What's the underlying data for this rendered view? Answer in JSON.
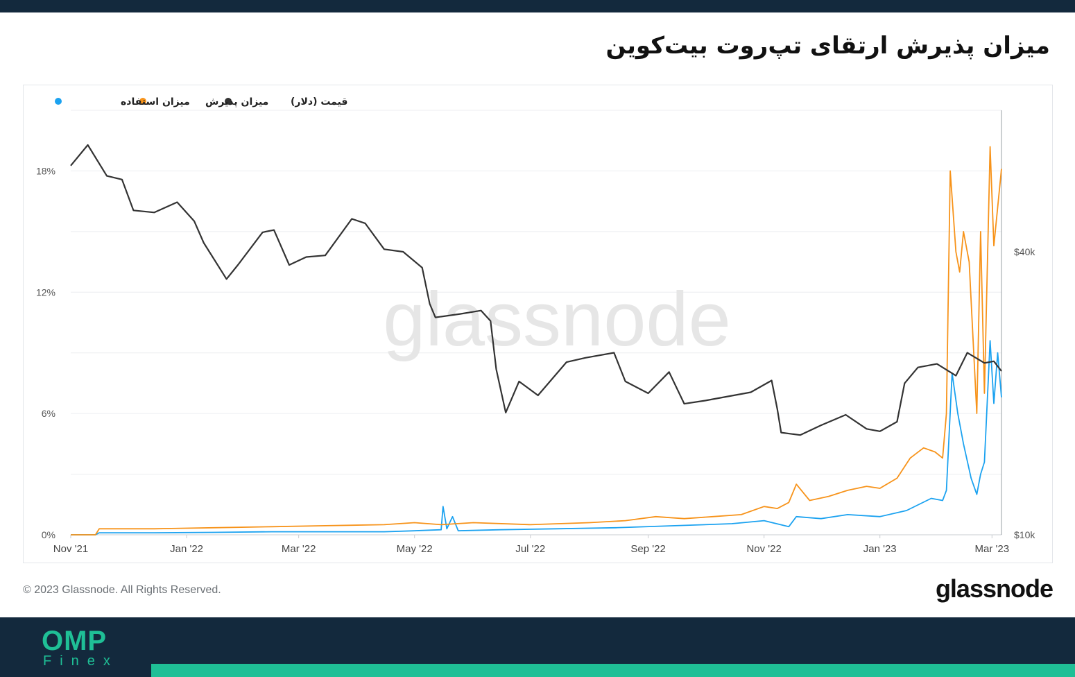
{
  "header": {
    "title": "میزان پذیرش ارتقای تپ‌روت بیت‌کوین"
  },
  "chart_data": {
    "type": "line",
    "title": "میزان پذیرش ارتقای تپ‌روت بیت‌کوین",
    "watermark": "glassnode",
    "legend": [
      {
        "label": "قیمت (دلار)",
        "color": "#333333"
      },
      {
        "label": "میزان پذیرش",
        "color": "#f7931a"
      },
      {
        "label": "میزان استفاده",
        "color": "#1ba2f0"
      }
    ],
    "legend_position": "top-left",
    "grid": true,
    "x_ticks": [
      "Nov '21",
      "Jan '22",
      "Mar '22",
      "May '22",
      "Jul '22",
      "Sep '22",
      "Nov '22",
      "Jan '23",
      "Mar '23"
    ],
    "y_left_ticks": [
      "0%",
      "6%",
      "12%",
      "18%"
    ],
    "y_left_range": [
      0,
      21
    ],
    "y_right_ticks": [
      "$10k",
      "$40k"
    ],
    "y_right_scale": "log",
    "y_right_range": [
      10000,
      80000
    ],
    "x_range": [
      "2021-11-01",
      "2023-03-06"
    ],
    "series": [
      {
        "name": "قیمت (دلار)",
        "axis": "right",
        "color": "#333333",
        "points": [
          [
            "2021-11-01",
            61000
          ],
          [
            "2021-11-10",
            67500
          ],
          [
            "2021-11-20",
            58000
          ],
          [
            "2021-11-28",
            57000
          ],
          [
            "2021-12-04",
            49000
          ],
          [
            "2021-12-15",
            48500
          ],
          [
            "2021-12-27",
            51000
          ],
          [
            "2022-01-05",
            46500
          ],
          [
            "2022-01-10",
            41800
          ],
          [
            "2022-01-22",
            35000
          ],
          [
            "2022-01-28",
            37500
          ],
          [
            "2022-02-10",
            44000
          ],
          [
            "2022-02-16",
            44500
          ],
          [
            "2022-02-24",
            37500
          ],
          [
            "2022-03-05",
            39000
          ],
          [
            "2022-03-15",
            39300
          ],
          [
            "2022-03-29",
            47000
          ],
          [
            "2022-04-05",
            46000
          ],
          [
            "2022-04-15",
            40500
          ],
          [
            "2022-04-25",
            40000
          ],
          [
            "2022-05-05",
            37000
          ],
          [
            "2022-05-09",
            31000
          ],
          [
            "2022-05-12",
            29000
          ],
          [
            "2022-05-25",
            29500
          ],
          [
            "2022-06-05",
            30000
          ],
          [
            "2022-06-10",
            28500
          ],
          [
            "2022-06-13",
            22500
          ],
          [
            "2022-06-18",
            18200
          ],
          [
            "2022-06-25",
            21200
          ],
          [
            "2022-07-05",
            19800
          ],
          [
            "2022-07-20",
            23300
          ],
          [
            "2022-07-30",
            23800
          ],
          [
            "2022-08-14",
            24400
          ],
          [
            "2022-08-20",
            21200
          ],
          [
            "2022-09-01",
            20000
          ],
          [
            "2022-09-12",
            22200
          ],
          [
            "2022-09-20",
            19000
          ],
          [
            "2022-10-01",
            19300
          ],
          [
            "2022-10-25",
            20100
          ],
          [
            "2022-11-05",
            21300
          ],
          [
            "2022-11-08",
            18500
          ],
          [
            "2022-11-10",
            16500
          ],
          [
            "2022-11-20",
            16300
          ],
          [
            "2022-12-01",
            17100
          ],
          [
            "2022-12-14",
            18000
          ],
          [
            "2022-12-25",
            16800
          ],
          [
            "2023-01-01",
            16600
          ],
          [
            "2023-01-10",
            17400
          ],
          [
            "2023-01-14",
            21000
          ],
          [
            "2023-01-21",
            22700
          ],
          [
            "2023-01-31",
            23100
          ],
          [
            "2023-02-10",
            21800
          ],
          [
            "2023-02-16",
            24400
          ],
          [
            "2023-02-25",
            23200
          ],
          [
            "2023-03-02",
            23400
          ],
          [
            "2023-03-06",
            22300
          ]
        ]
      },
      {
        "name": "میزان پذیرش",
        "axis": "left",
        "color": "#f7931a",
        "points": [
          [
            "2021-11-01",
            0.0
          ],
          [
            "2021-11-14",
            0.0
          ],
          [
            "2021-11-16",
            0.3
          ],
          [
            "2021-12-15",
            0.3
          ],
          [
            "2022-01-15",
            0.35
          ],
          [
            "2022-02-15",
            0.4
          ],
          [
            "2022-03-15",
            0.45
          ],
          [
            "2022-04-15",
            0.5
          ],
          [
            "2022-05-01",
            0.6
          ],
          [
            "2022-05-15",
            0.5
          ],
          [
            "2022-06-01",
            0.6
          ],
          [
            "2022-07-01",
            0.5
          ],
          [
            "2022-08-01",
            0.6
          ],
          [
            "2022-08-20",
            0.7
          ],
          [
            "2022-09-05",
            0.9
          ],
          [
            "2022-09-20",
            0.8
          ],
          [
            "2022-10-05",
            0.9
          ],
          [
            "2022-10-20",
            1.0
          ],
          [
            "2022-11-01",
            1.4
          ],
          [
            "2022-11-08",
            1.3
          ],
          [
            "2022-11-14",
            1.6
          ],
          [
            "2022-11-18",
            2.5
          ],
          [
            "2022-11-25",
            1.7
          ],
          [
            "2022-12-05",
            1.9
          ],
          [
            "2022-12-15",
            2.2
          ],
          [
            "2022-12-25",
            2.4
          ],
          [
            "2023-01-01",
            2.3
          ],
          [
            "2023-01-10",
            2.8
          ],
          [
            "2023-01-17",
            3.8
          ],
          [
            "2023-01-24",
            4.3
          ],
          [
            "2023-01-30",
            4.1
          ],
          [
            "2023-02-03",
            3.8
          ],
          [
            "2023-02-05",
            6.0
          ],
          [
            "2023-02-07",
            18.0
          ],
          [
            "2023-02-10",
            14.0
          ],
          [
            "2023-02-12",
            13.0
          ],
          [
            "2023-02-14",
            15.0
          ],
          [
            "2023-02-17",
            13.5
          ],
          [
            "2023-02-21",
            6.0
          ],
          [
            "2023-02-23",
            15.0
          ],
          [
            "2023-02-25",
            7.0
          ],
          [
            "2023-02-28",
            19.2
          ],
          [
            "2023-03-02",
            14.3
          ],
          [
            "2023-03-06",
            18.1
          ]
        ]
      },
      {
        "name": "میزان استفاده",
        "axis": "left",
        "color": "#1ba2f0",
        "points": [
          [
            "2021-11-01",
            0.0
          ],
          [
            "2021-11-14",
            0.0
          ],
          [
            "2021-11-16",
            0.1
          ],
          [
            "2021-12-15",
            0.1
          ],
          [
            "2022-01-15",
            0.12
          ],
          [
            "2022-02-15",
            0.15
          ],
          [
            "2022-03-15",
            0.15
          ],
          [
            "2022-04-15",
            0.15
          ],
          [
            "2022-05-01",
            0.2
          ],
          [
            "2022-05-15",
            0.25
          ],
          [
            "2022-05-16",
            1.4
          ],
          [
            "2022-05-18",
            0.3
          ],
          [
            "2022-05-21",
            0.9
          ],
          [
            "2022-05-24",
            0.2
          ],
          [
            "2022-06-15",
            0.25
          ],
          [
            "2022-07-15",
            0.3
          ],
          [
            "2022-08-15",
            0.35
          ],
          [
            "2022-09-15",
            0.45
          ],
          [
            "2022-10-15",
            0.55
          ],
          [
            "2022-11-01",
            0.7
          ],
          [
            "2022-11-14",
            0.4
          ],
          [
            "2022-11-18",
            0.9
          ],
          [
            "2022-12-01",
            0.8
          ],
          [
            "2022-12-15",
            1.0
          ],
          [
            "2023-01-01",
            0.9
          ],
          [
            "2023-01-15",
            1.2
          ],
          [
            "2023-01-28",
            1.8
          ],
          [
            "2023-02-03",
            1.7
          ],
          [
            "2023-02-05",
            2.2
          ],
          [
            "2023-02-08",
            8.0
          ],
          [
            "2023-02-11",
            6.0
          ],
          [
            "2023-02-14",
            4.5
          ],
          [
            "2023-02-18",
            2.8
          ],
          [
            "2023-02-21",
            2.0
          ],
          [
            "2023-02-23",
            3.0
          ],
          [
            "2023-02-25",
            3.6
          ],
          [
            "2023-02-28",
            9.6
          ],
          [
            "2023-03-02",
            6.5
          ],
          [
            "2023-03-04",
            9.0
          ],
          [
            "2023-03-06",
            6.8
          ]
        ]
      }
    ]
  },
  "footer": {
    "copyright": "© 2023 Glassnode. All Rights Reserved.",
    "brand": "glassnode",
    "logo_main": "OMP",
    "logo_sub": "Finex"
  }
}
